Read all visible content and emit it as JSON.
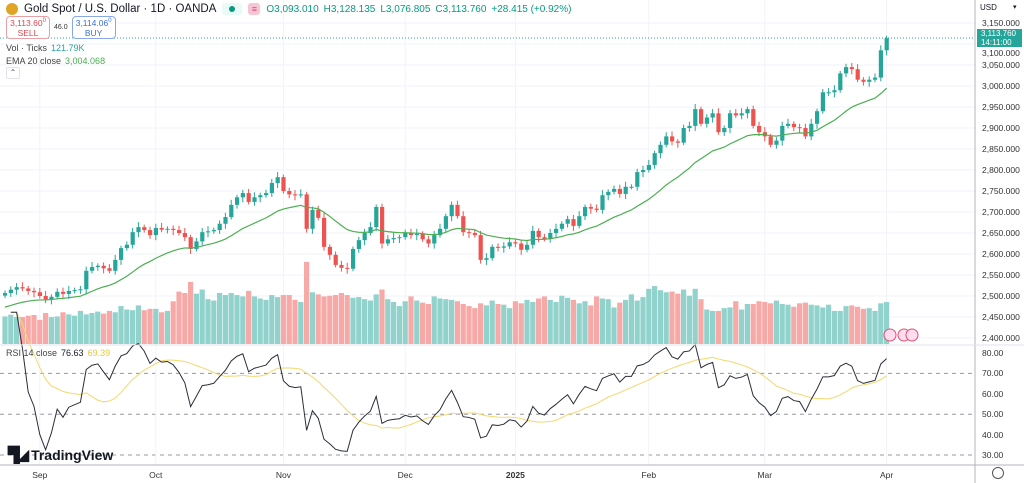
{
  "header": {
    "symbol": "Gold Spot / U.S. Dollar · 1D · OANDA",
    "open": "O3,093.010",
    "high": "H3,128.135",
    "low": "L3,076.805",
    "close": "C3,113.760",
    "change": "+28.415 (+0.92%)"
  },
  "trade": {
    "sell_price": "3,113.60",
    "sell_sup": "0",
    "sell_label": "SELL",
    "spread": "46.0",
    "buy_price": "3,114.06",
    "buy_sup": "0",
    "buy_label": "BUY"
  },
  "indicators": {
    "vol_label": "Vol · Ticks",
    "vol_value": "121.79K",
    "ema_label": "EMA 20 close",
    "ema_value": "3,004.068",
    "rsi_label": "RSI 14 close",
    "rsi_value": "76.63",
    "rsi_ma_value": "69.39"
  },
  "axis": {
    "currency": "USD",
    "last_price": "3,113.760",
    "countdown": "14:11:00"
  },
  "brand": "TradingView",
  "colors": {
    "up": "#26a69a",
    "down": "#ef5350",
    "vol_up": "#92d2cc",
    "vol_down": "#f7a9a7",
    "ema": "#4caf50",
    "rsi": "#2a2e39",
    "rsi_ma": "#f5d76e"
  },
  "chart_data": {
    "type": "candlestick",
    "price_ticks": [
      "3,150.000",
      "3,100.000",
      "3,050.000",
      "3,000.000",
      "2,950.000",
      "2,900.000",
      "2,850.000",
      "2,800.000",
      "2,750.000",
      "2,700.000",
      "2,650.000",
      "2,600.000",
      "2,550.000",
      "2,500.000",
      "2,450.000",
      "2,400.000"
    ],
    "price_tick_values": [
      3150,
      3100,
      3050,
      3000,
      2950,
      2900,
      2850,
      2800,
      2750,
      2700,
      2650,
      2600,
      2550,
      2500,
      2450,
      2400
    ],
    "ylim": [
      2400,
      3150
    ],
    "rsi_ticks": [
      "80.00",
      "70.00",
      "60.00",
      "50.00",
      "40.00",
      "30.00"
    ],
    "rsi_tick_values": [
      80,
      70,
      60,
      50,
      40,
      30
    ],
    "rsi_levels": [
      70,
      50,
      30
    ],
    "time_labels": [
      "Sep",
      "Oct",
      "Nov",
      "Dec",
      "2025",
      "Feb",
      "Mar",
      "Apr"
    ],
    "time_label_index": [
      6,
      26,
      48,
      69,
      88,
      111,
      131,
      152
    ],
    "closes": [
      2507,
      2515,
      2521,
      2518,
      2512,
      2509,
      2500,
      2492,
      2498,
      2510,
      2505,
      2512,
      2514,
      2516,
      2560,
      2569,
      2572,
      2566,
      2560,
      2586,
      2614,
      2622,
      2652,
      2664,
      2657,
      2645,
      2662,
      2658,
      2660,
      2657,
      2650,
      2640,
      2612,
      2630,
      2652,
      2654,
      2657,
      2672,
      2688,
      2717,
      2735,
      2745,
      2724,
      2735,
      2740,
      2745,
      2769,
      2783,
      2750,
      2742,
      2740,
      2742,
      2660,
      2705,
      2686,
      2617,
      2598,
      2574,
      2567,
      2565,
      2612,
      2633,
      2650,
      2664,
      2712,
      2625,
      2635,
      2638,
      2640,
      2650,
      2645,
      2648,
      2635,
      2625,
      2645,
      2660,
      2690,
      2717,
      2690,
      2652,
      2650,
      2645,
      2586,
      2590,
      2617,
      2615,
      2618,
      2628,
      2625,
      2610,
      2622,
      2655,
      2640,
      2636,
      2650,
      2660,
      2672,
      2683,
      2667,
      2690,
      2712,
      2708,
      2705,
      2740,
      2748,
      2755,
      2743,
      2760,
      2760,
      2795,
      2800,
      2812,
      2840,
      2860,
      2880,
      2868,
      2865,
      2900,
      2905,
      2945,
      2910,
      2925,
      2935,
      2890,
      2900,
      2935,
      2930,
      2935,
      2945,
      2905,
      2890,
      2880,
      2860,
      2870,
      2905,
      2910,
      2902,
      2900,
      2880,
      2910,
      2940,
      2985,
      2985,
      2990,
      3030,
      3045,
      3040,
      3015,
      3010,
      3015,
      3020,
      3085,
      3113.76
    ],
    "volumes_k": [
      80,
      85,
      78,
      78,
      82,
      84,
      70,
      90,
      78,
      80,
      92,
      86,
      82,
      96,
      86,
      90,
      94,
      88,
      96,
      92,
      110,
      100,
      98,
      112,
      98,
      102,
      102,
      92,
      96,
      124,
      152,
      148,
      180,
      146,
      158,
      130,
      126,
      148,
      142,
      148,
      142,
      138,
      154,
      138,
      132,
      128,
      142,
      136,
      142,
      142,
      128,
      122,
      238,
      150,
      144,
      138,
      140,
      142,
      148,
      142,
      134,
      136,
      130,
      126,
      144,
      158,
      130,
      122,
      110,
      124,
      138,
      126,
      120,
      116,
      138,
      132,
      130,
      128,
      124,
      116,
      110,
      104,
      118,
      112,
      126,
      116,
      114,
      104,
      124,
      118,
      128,
      122,
      132,
      138,
      128,
      122,
      140,
      134,
      128,
      118,
      124,
      112,
      138,
      132,
      130,
      106,
      120,
      128,
      144,
      126,
      136,
      160,
      168,
      156,
      150,
      152,
      146,
      158,
      140,
      160,
      130,
      100,
      96,
      96,
      104,
      106,
      124,
      100,
      116,
      116,
      124,
      122,
      118,
      126,
      116,
      114,
      108,
      118,
      120,
      114,
      112,
      106,
      114,
      96,
      96,
      110,
      112,
      108,
      102,
      104,
      96,
      118,
      121.79
    ]
  }
}
